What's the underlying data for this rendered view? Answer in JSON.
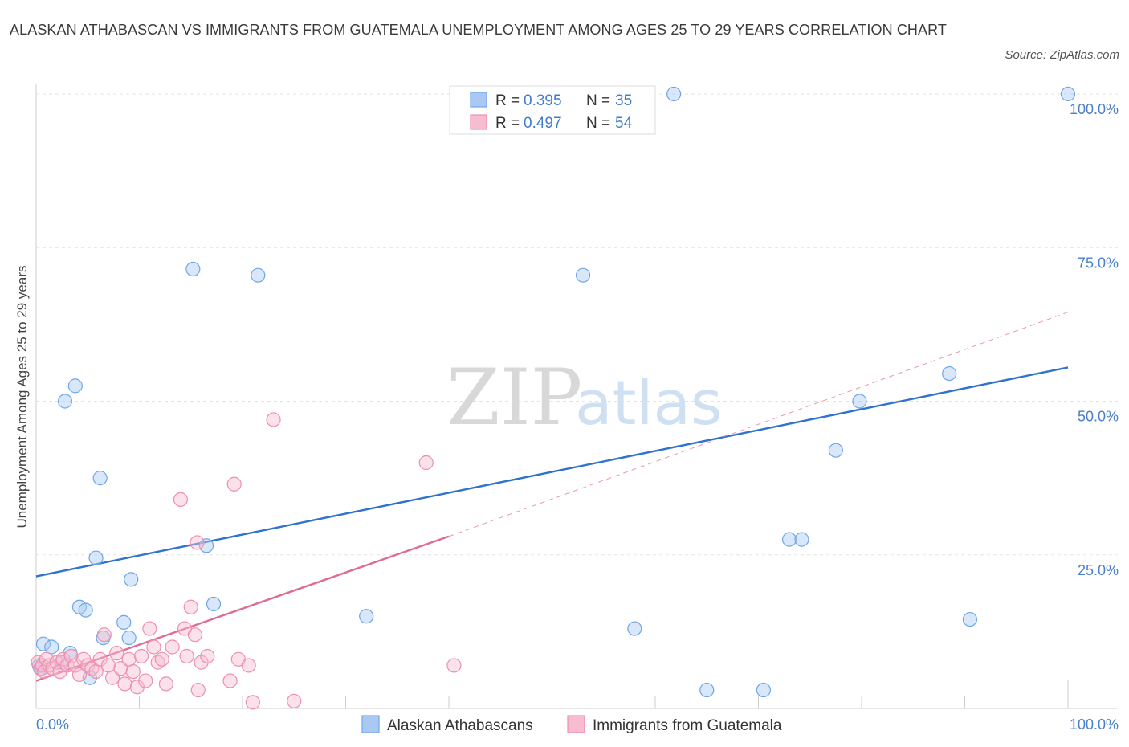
{
  "title": "ALASKAN ATHABASCAN VS IMMIGRANTS FROM GUATEMALA UNEMPLOYMENT AMONG AGES 25 TO 29 YEARS CORRELATION CHART",
  "source": "Source: ZipAtlas.com",
  "watermark": {
    "zip": "ZIP",
    "atlas": "atlas"
  },
  "colors": {
    "blue": "#6fa6e8",
    "blue_fill": "#a9c9f2",
    "blue_line": "#2f73cf",
    "pink": "#ee8fb0",
    "pink_fill": "#f7bccf",
    "pink_line": "#e06a96",
    "axis_text": "#4a7fc9"
  },
  "legend": {
    "rows": [
      {
        "r_label": "R =",
        "r_value": "0.395",
        "n_label": "N =",
        "n_value": "35"
      },
      {
        "r_label": "R =",
        "r_value": "0.497",
        "n_label": "N =",
        "n_value": "54"
      }
    ]
  },
  "chart_data": {
    "type": "scatter",
    "title": "ALASKAN ATHABASCAN VS IMMIGRANTS FROM GUATEMALA UNEMPLOYMENT AMONG AGES 25 TO 29 YEARS CORRELATION CHART",
    "xlabel": "",
    "ylabel": "Unemployment Among Ages 25 to 29 years",
    "xlim": [
      0,
      100
    ],
    "ylim": [
      0,
      100
    ],
    "x_tick_labels": [
      "0.0%",
      "100.0%"
    ],
    "y_tick_labels": [
      "25.0%",
      "50.0%",
      "75.0%",
      "100.0%"
    ],
    "y_ticks": [
      25,
      50,
      75,
      100
    ],
    "grid": true,
    "legend_position": "top-center",
    "series": [
      {
        "name": "Alaskan Athabascans",
        "r": 0.395,
        "n": 35,
        "trend": {
          "x": [
            0,
            100
          ],
          "y": [
            21.5,
            55.5
          ],
          "dashed_extension": false
        },
        "points": [
          [
            0.3,
            7
          ],
          [
            0.7,
            10.5
          ],
          [
            1.5,
            10
          ],
          [
            2.5,
            7.5
          ],
          [
            2.8,
            50
          ],
          [
            3.3,
            9
          ],
          [
            3.8,
            52.5
          ],
          [
            4.2,
            16.5
          ],
          [
            4.8,
            16
          ],
          [
            5.2,
            5
          ],
          [
            5.8,
            24.5
          ],
          [
            6.2,
            37.5
          ],
          [
            6.5,
            11.5
          ],
          [
            8.5,
            14
          ],
          [
            9,
            11.5
          ],
          [
            9.2,
            21
          ],
          [
            15.2,
            71.5
          ],
          [
            16.5,
            26.5
          ],
          [
            17.2,
            17
          ],
          [
            21.5,
            70.5
          ],
          [
            32,
            15
          ],
          [
            50,
            100
          ],
          [
            53,
            70.5
          ],
          [
            58,
            13
          ],
          [
            61.8,
            100
          ],
          [
            65,
            3
          ],
          [
            70.5,
            3
          ],
          [
            73,
            27.5
          ],
          [
            74.2,
            27.5
          ],
          [
            77.5,
            42
          ],
          [
            79.8,
            50
          ],
          [
            88.5,
            54.5
          ],
          [
            90.5,
            14.5
          ],
          [
            100,
            100
          ],
          [
            0.5,
            6.5
          ]
        ]
      },
      {
        "name": "Immigrants from Guatemala",
        "r": 0.497,
        "n": 54,
        "trend": {
          "x": [
            0,
            40
          ],
          "y": [
            4.5,
            28
          ],
          "dashed_extension": true,
          "dashed_to": [
            100,
            64.5
          ]
        },
        "points": [
          [
            0.2,
            7.5
          ],
          [
            0.4,
            6.5
          ],
          [
            0.6,
            7
          ],
          [
            0.8,
            6
          ],
          [
            1,
            8
          ],
          [
            1.3,
            7
          ],
          [
            1.6,
            6.5
          ],
          [
            2,
            7.5
          ],
          [
            2.3,
            6
          ],
          [
            2.6,
            8
          ],
          [
            3,
            7
          ],
          [
            3.4,
            8.5
          ],
          [
            3.8,
            7
          ],
          [
            4.2,
            5.5
          ],
          [
            4.6,
            8
          ],
          [
            5,
            7
          ],
          [
            5.4,
            6.5
          ],
          [
            5.8,
            6
          ],
          [
            6.2,
            8
          ],
          [
            6.6,
            12
          ],
          [
            7,
            7
          ],
          [
            7.4,
            5
          ],
          [
            7.8,
            9
          ],
          [
            8.2,
            6.5
          ],
          [
            8.6,
            4
          ],
          [
            9,
            8
          ],
          [
            9.4,
            6
          ],
          [
            9.8,
            3.5
          ],
          [
            10.2,
            8.5
          ],
          [
            10.6,
            4.5
          ],
          [
            11,
            13
          ],
          [
            11.4,
            10
          ],
          [
            11.8,
            7.5
          ],
          [
            12.2,
            8
          ],
          [
            12.6,
            4
          ],
          [
            13.2,
            10
          ],
          [
            14,
            34
          ],
          [
            14.4,
            13
          ],
          [
            14.6,
            8.5
          ],
          [
            15,
            16.5
          ],
          [
            15.4,
            12
          ],
          [
            15.6,
            27
          ],
          [
            15.7,
            3
          ],
          [
            16,
            7.5
          ],
          [
            16.6,
            8.5
          ],
          [
            18.8,
            4.5
          ],
          [
            19.2,
            36.5
          ],
          [
            19.6,
            8
          ],
          [
            20.6,
            7
          ],
          [
            21,
            1
          ],
          [
            23,
            47
          ],
          [
            25,
            1.2
          ],
          [
            37.8,
            40
          ],
          [
            40.5,
            7
          ]
        ]
      }
    ]
  }
}
